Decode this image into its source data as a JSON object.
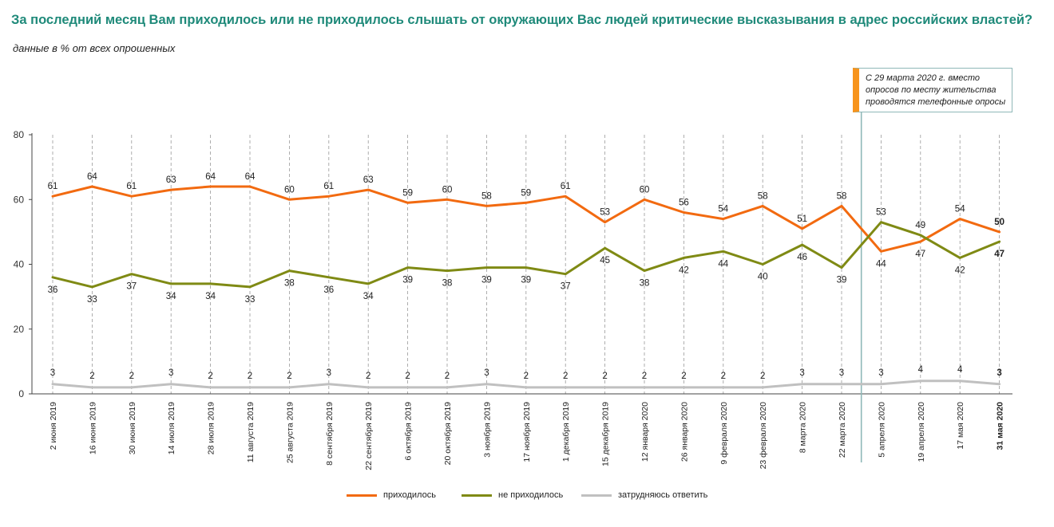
{
  "title": "За последний месяц Вам приходилось или не приходилось слышать от окружающих Вас людей критические высказывания в адрес российских властей?",
  "subtitle": "данные в % от всех опрошенных",
  "note": "С 29 марта 2020 г. вместо опросов по месту жительства проводятся телефонные опросы",
  "colors": {
    "title": "#1f8a7a",
    "series": [
      "#f26a10",
      "#7f8a14",
      "#c0c0c0"
    ],
    "divider": "#8fb8b8",
    "note_accent": "#f7941d"
  },
  "chart_data": {
    "type": "line",
    "categories": [
      "2 июня 2019",
      "16 июня 2019",
      "30 июня 2019",
      "14 июля 2019",
      "28 июля 2019",
      "11 августа 2019",
      "25 августа 2019",
      "8 сентября 2019",
      "22 сентября 2019",
      "6 октября 2019",
      "20 октября 2019",
      "3 ноября 2019",
      "17 ноября 2019",
      "1 декабря 2019",
      "15 декабря 2019",
      "12 января 2020",
      "26 января 2020",
      "9 февраля 2020",
      "23 февраля 2020",
      "8 марта 2020",
      "22 марта 2020",
      "5 апреля 2020",
      "19 апреля 2020",
      "17 мая 2020",
      "31 мая 2020"
    ],
    "series": [
      {
        "name": "приходилось",
        "values": [
          61,
          64,
          61,
          63,
          64,
          64,
          60,
          61,
          63,
          59,
          60,
          58,
          59,
          61,
          53,
          60,
          56,
          54,
          58,
          51,
          58,
          44,
          47,
          54,
          50
        ]
      },
      {
        "name": "не приходилось",
        "values": [
          36,
          33,
          37,
          34,
          34,
          33,
          38,
          36,
          34,
          39,
          38,
          39,
          39,
          37,
          45,
          38,
          42,
          44,
          40,
          46,
          39,
          53,
          49,
          42,
          47
        ]
      },
      {
        "name": "затрудняюсь ответить",
        "values": [
          3,
          2,
          2,
          3,
          2,
          2,
          2,
          3,
          2,
          2,
          2,
          3,
          2,
          2,
          2,
          2,
          2,
          2,
          2,
          3,
          3,
          3,
          4,
          4,
          3
        ]
      }
    ],
    "ylim": [
      0,
      80
    ],
    "yticks": [
      "0",
      "20",
      "40",
      "60",
      "80"
    ],
    "grid": "vertical dashed",
    "legend_position": "bottom"
  }
}
